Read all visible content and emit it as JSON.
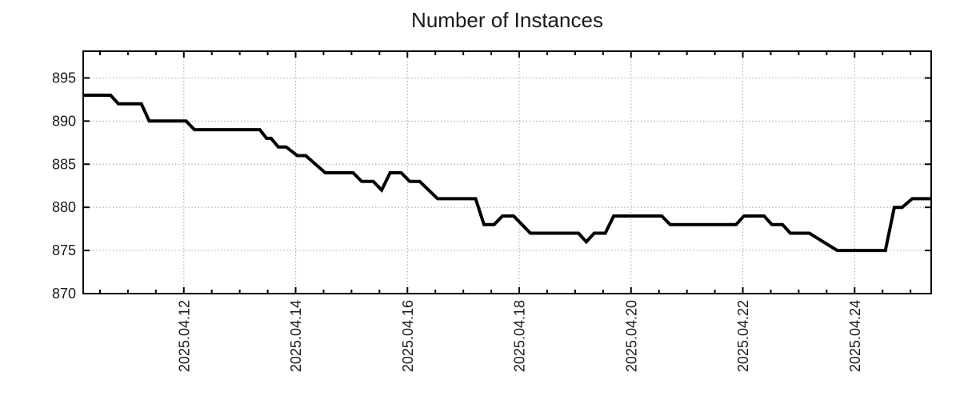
{
  "chart_data": {
    "type": "line",
    "title": "Number of Instances",
    "grid": true,
    "legend": "none",
    "colors": {
      "line": "#000000",
      "grid": "#b0b0b0",
      "axis": "#000000",
      "text": "#1a1a1a",
      "background": "#ffffff"
    },
    "x_axis": {
      "unit": "date",
      "x_unit_description": "x values are days since 2025-04-10 00:00, read from labeled date ticks",
      "range": [
        0.2,
        15.37
      ],
      "minor_tick_interval": 0.5,
      "major_ticks": [
        {
          "pos": 2,
          "label": "2025.04.12"
        },
        {
          "pos": 4,
          "label": "2025.04.14"
        },
        {
          "pos": 6,
          "label": "2025.04.16"
        },
        {
          "pos": 8,
          "label": "2025.04.18"
        },
        {
          "pos": 10,
          "label": "2025.04.20"
        },
        {
          "pos": 12,
          "label": "2025.04.22"
        },
        {
          "pos": 14,
          "label": "2025.04.24"
        }
      ]
    },
    "y_axis": {
      "range": [
        870,
        898.1
      ],
      "ticks": [
        870,
        875,
        880,
        885,
        890,
        895
      ]
    },
    "series": [
      {
        "name": "instances",
        "points": [
          [
            0.2,
            893
          ],
          [
            0.69,
            893
          ],
          [
            0.83,
            892
          ],
          [
            1.24,
            892
          ],
          [
            1.38,
            890
          ],
          [
            2.04,
            890
          ],
          [
            2.19,
            889
          ],
          [
            3.36,
            889
          ],
          [
            3.48,
            888
          ],
          [
            3.56,
            888
          ],
          [
            3.69,
            887
          ],
          [
            3.83,
            887
          ],
          [
            4.03,
            886
          ],
          [
            4.18,
            886
          ],
          [
            4.53,
            884
          ],
          [
            5.03,
            884
          ],
          [
            5.18,
            883
          ],
          [
            5.39,
            883
          ],
          [
            5.54,
            882
          ],
          [
            5.69,
            884
          ],
          [
            5.89,
            884
          ],
          [
            6.04,
            883
          ],
          [
            6.22,
            883
          ],
          [
            6.54,
            881
          ],
          [
            7.22,
            881
          ],
          [
            7.37,
            878
          ],
          [
            7.55,
            878
          ],
          [
            7.7,
            879
          ],
          [
            7.9,
            879
          ],
          [
            8.2,
            877
          ],
          [
            9.06,
            877
          ],
          [
            9.2,
            876
          ],
          [
            9.34,
            877
          ],
          [
            9.54,
            877
          ],
          [
            9.69,
            879
          ],
          [
            10.55,
            879
          ],
          [
            10.7,
            878
          ],
          [
            11.88,
            878
          ],
          [
            12.02,
            879
          ],
          [
            12.38,
            879
          ],
          [
            12.52,
            878
          ],
          [
            12.71,
            878
          ],
          [
            12.85,
            877
          ],
          [
            13.19,
            877
          ],
          [
            13.44,
            876
          ],
          [
            13.69,
            875
          ],
          [
            14.55,
            875
          ],
          [
            14.71,
            880
          ],
          [
            14.85,
            880
          ],
          [
            15.03,
            881
          ],
          [
            15.37,
            881
          ]
        ]
      }
    ]
  }
}
